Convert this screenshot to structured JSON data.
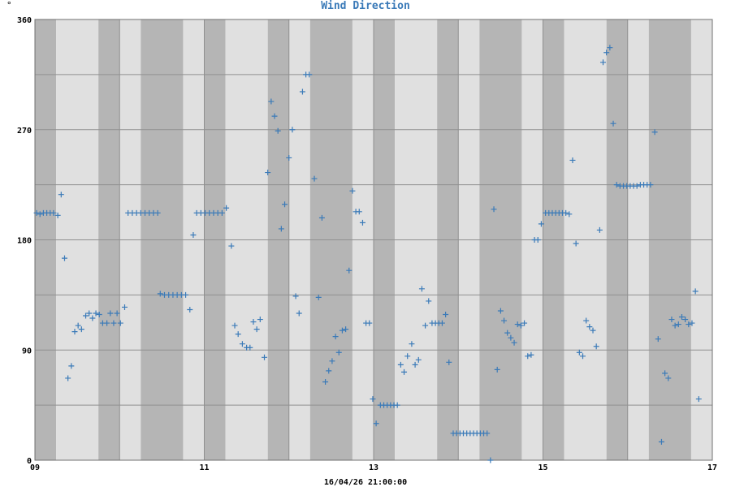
{
  "chart_data": {
    "type": "scatter",
    "title": "Wind Direction",
    "y_unit": "°",
    "footer": "16/04/26 21:00:00",
    "xlim": [
      9,
      17
    ],
    "ylim": [
      0,
      360
    ],
    "x_tick_labels": [
      "09",
      "11",
      "13",
      "15",
      "17"
    ],
    "x_tick_values": [
      9,
      11,
      13,
      15,
      17
    ],
    "y_tick_labels": [
      "0",
      "90",
      "180",
      "270",
      "360"
    ],
    "y_tick_values": [
      0,
      90,
      180,
      270,
      360
    ],
    "grid": true,
    "band_hours": [
      9.0,
      9.25,
      9.75,
      10.0,
      10.25,
      10.75,
      11.0,
      11.25,
      11.75,
      12.0,
      12.25,
      12.75,
      13.0,
      13.25,
      13.75,
      14.0,
      14.25,
      14.75,
      15.0,
      15.25,
      15.75,
      16.0,
      16.25,
      16.75,
      17.0
    ],
    "marker": "+",
    "colors": {
      "marker": "#3a7ab8",
      "title": "#3a7ab8",
      "band_dark": "#b5b5b5",
      "band_light": "#e0e0e0",
      "grid": "#909090"
    },
    "series": [
      {
        "points": [
          [
            9.02,
            202
          ],
          [
            9.06,
            201
          ],
          [
            9.1,
            202
          ],
          [
            9.14,
            202
          ],
          [
            9.18,
            202
          ],
          [
            9.22,
            202
          ],
          [
            9.27,
            200
          ],
          [
            9.31,
            217
          ],
          [
            9.35,
            165
          ],
          [
            9.39,
            67
          ],
          [
            9.43,
            77
          ],
          [
            9.47,
            105
          ],
          [
            9.51,
            110
          ],
          [
            9.55,
            107
          ],
          [
            9.6,
            118
          ],
          [
            9.64,
            120
          ],
          [
            9.68,
            116
          ],
          [
            9.72,
            120
          ],
          [
            9.76,
            119
          ],
          [
            9.8,
            112
          ],
          [
            9.85,
            112
          ],
          [
            9.89,
            120
          ],
          [
            9.93,
            112
          ],
          [
            9.97,
            120
          ],
          [
            10.01,
            112
          ],
          [
            10.06,
            125
          ],
          [
            10.1,
            202
          ],
          [
            10.15,
            202
          ],
          [
            10.2,
            202
          ],
          [
            10.25,
            202
          ],
          [
            10.3,
            202
          ],
          [
            10.35,
            202
          ],
          [
            10.4,
            202
          ],
          [
            10.45,
            202
          ],
          [
            10.48,
            136
          ],
          [
            10.53,
            135
          ],
          [
            10.58,
            135
          ],
          [
            10.63,
            135
          ],
          [
            10.68,
            135
          ],
          [
            10.73,
            135
          ],
          [
            10.78,
            135
          ],
          [
            10.83,
            123
          ],
          [
            10.87,
            184
          ],
          [
            10.91,
            202
          ],
          [
            10.96,
            202
          ],
          [
            11.01,
            202
          ],
          [
            11.06,
            202
          ],
          [
            11.11,
            202
          ],
          [
            11.16,
            202
          ],
          [
            11.21,
            202
          ],
          [
            11.26,
            206
          ],
          [
            11.32,
            175
          ],
          [
            11.36,
            110
          ],
          [
            11.4,
            103
          ],
          [
            11.45,
            95
          ],
          [
            11.5,
            92
          ],
          [
            11.54,
            92
          ],
          [
            11.58,
            113
          ],
          [
            11.62,
            107
          ],
          [
            11.66,
            115
          ],
          [
            11.71,
            84
          ],
          [
            11.75,
            235
          ],
          [
            11.79,
            293
          ],
          [
            11.83,
            281
          ],
          [
            11.87,
            269
          ],
          [
            11.91,
            189
          ],
          [
            11.95,
            209
          ],
          [
            12.0,
            247
          ],
          [
            12.04,
            270
          ],
          [
            12.08,
            134
          ],
          [
            12.12,
            120
          ],
          [
            12.16,
            301
          ],
          [
            12.2,
            315
          ],
          [
            12.24,
            315
          ],
          [
            12.3,
            230
          ],
          [
            12.35,
            133
          ],
          [
            12.39,
            198
          ],
          [
            12.43,
            64
          ],
          [
            12.47,
            73
          ],
          [
            12.51,
            81
          ],
          [
            12.55,
            101
          ],
          [
            12.59,
            88
          ],
          [
            12.63,
            106
          ],
          [
            12.67,
            107
          ],
          [
            12.71,
            155
          ],
          [
            12.75,
            220
          ],
          [
            12.79,
            203
          ],
          [
            12.83,
            203
          ],
          [
            12.87,
            194
          ],
          [
            12.91,
            112
          ],
          [
            12.95,
            112
          ],
          [
            12.99,
            50
          ],
          [
            13.03,
            30
          ],
          [
            13.08,
            45
          ],
          [
            13.12,
            45
          ],
          [
            13.16,
            45
          ],
          [
            13.2,
            45
          ],
          [
            13.24,
            45
          ],
          [
            13.28,
            45
          ],
          [
            13.32,
            78
          ],
          [
            13.36,
            72
          ],
          [
            13.4,
            85
          ],
          [
            13.45,
            95
          ],
          [
            13.49,
            78
          ],
          [
            13.53,
            82
          ],
          [
            13.57,
            140
          ],
          [
            13.61,
            110
          ],
          [
            13.65,
            130
          ],
          [
            13.69,
            112
          ],
          [
            13.73,
            112
          ],
          [
            13.77,
            112
          ],
          [
            13.81,
            112
          ],
          [
            13.85,
            119
          ],
          [
            13.89,
            80
          ],
          [
            13.94,
            22
          ],
          [
            13.98,
            22
          ],
          [
            14.02,
            22
          ],
          [
            14.06,
            22
          ],
          [
            14.1,
            22
          ],
          [
            14.14,
            22
          ],
          [
            14.18,
            22
          ],
          [
            14.22,
            22
          ],
          [
            14.26,
            22
          ],
          [
            14.3,
            22
          ],
          [
            14.34,
            22
          ],
          [
            14.38,
            0
          ],
          [
            14.42,
            205
          ],
          [
            14.46,
            74
          ],
          [
            14.5,
            122
          ],
          [
            14.54,
            114
          ],
          [
            14.58,
            104
          ],
          [
            14.62,
            100
          ],
          [
            14.66,
            96
          ],
          [
            14.7,
            111
          ],
          [
            14.74,
            110
          ],
          [
            14.78,
            112
          ],
          [
            14.82,
            85
          ],
          [
            14.86,
            86
          ],
          [
            14.9,
            180
          ],
          [
            14.94,
            180
          ],
          [
            14.98,
            193
          ],
          [
            15.03,
            202
          ],
          [
            15.07,
            202
          ],
          [
            15.11,
            202
          ],
          [
            15.15,
            202
          ],
          [
            15.19,
            202
          ],
          [
            15.23,
            202
          ],
          [
            15.27,
            202
          ],
          [
            15.31,
            201
          ],
          [
            15.35,
            245
          ],
          [
            15.39,
            177
          ],
          [
            15.43,
            88
          ],
          [
            15.47,
            85
          ],
          [
            15.51,
            114
          ],
          [
            15.55,
            109
          ],
          [
            15.59,
            106
          ],
          [
            15.63,
            93
          ],
          [
            15.67,
            188
          ],
          [
            15.71,
            325
          ],
          [
            15.75,
            333
          ],
          [
            15.79,
            337
          ],
          [
            15.83,
            275
          ],
          [
            15.87,
            225
          ],
          [
            15.91,
            224
          ],
          [
            15.95,
            224
          ],
          [
            15.99,
            224
          ],
          [
            16.03,
            224
          ],
          [
            16.07,
            224
          ],
          [
            16.11,
            224
          ],
          [
            16.15,
            225
          ],
          [
            16.19,
            225
          ],
          [
            16.23,
            225
          ],
          [
            16.27,
            225
          ],
          [
            16.32,
            268
          ],
          [
            16.36,
            99
          ],
          [
            16.4,
            15
          ],
          [
            16.44,
            71
          ],
          [
            16.48,
            67
          ],
          [
            16.52,
            115
          ],
          [
            16.56,
            110
          ],
          [
            16.6,
            111
          ],
          [
            16.64,
            117
          ],
          [
            16.68,
            115
          ],
          [
            16.72,
            111
          ],
          [
            16.76,
            112
          ],
          [
            16.8,
            138
          ],
          [
            16.84,
            50
          ]
        ]
      }
    ]
  }
}
